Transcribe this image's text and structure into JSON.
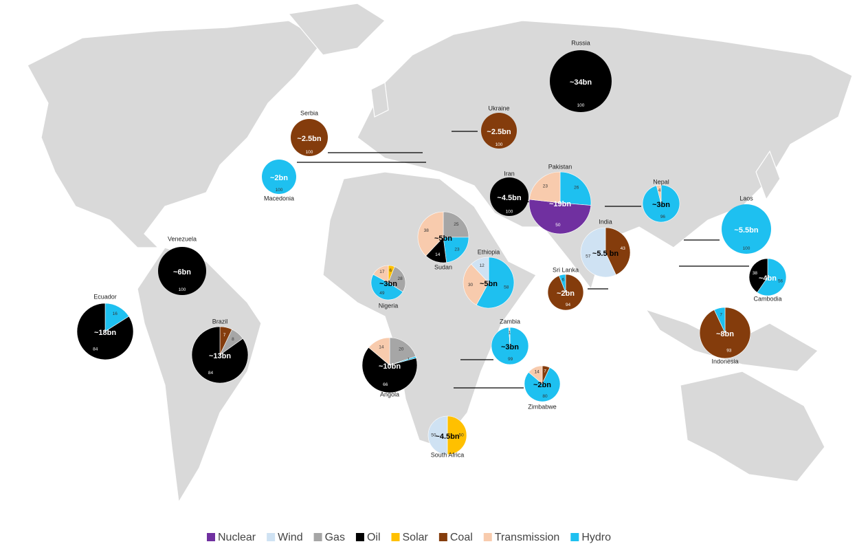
{
  "legend": [
    {
      "name": "Nuclear",
      "color": "#7030a0"
    },
    {
      "name": "Wind",
      "color": "#cfe2f3"
    },
    {
      "name": "Gas",
      "color": "#a6a6a6"
    },
    {
      "name": "Oil",
      "color": "#000000"
    },
    {
      "name": "Solar",
      "color": "#ffc000"
    },
    {
      "name": "Coal",
      "color": "#843c0c"
    },
    {
      "name": "Transmission",
      "color": "#f8cbad"
    },
    {
      "name": "Hydro",
      "color": "#1ec0f0"
    }
  ],
  "countries": [
    {
      "name": "Russia",
      "total": "~34bn",
      "slices": [
        {
          "source": "Oil",
          "value": 100
        }
      ]
    },
    {
      "name": "Ukraine",
      "total": "~2.5bn",
      "slices": [
        {
          "source": "Coal",
          "value": 100
        }
      ]
    },
    {
      "name": "Serbia",
      "total": "~2.5bn",
      "slices": [
        {
          "source": "Coal",
          "value": 100
        }
      ]
    },
    {
      "name": "Macedonia",
      "total": "~2bn",
      "slices": [
        {
          "source": "Hydro",
          "value": 100
        }
      ]
    },
    {
      "name": "Iran",
      "total": "~4.5bn",
      "slices": [
        {
          "source": "Oil",
          "value": 100
        }
      ]
    },
    {
      "name": "Pakistan",
      "total": "~19bn",
      "slices": [
        {
          "source": "Hydro",
          "value": 26
        },
        {
          "source": "Nuclear",
          "value": 50
        },
        {
          "source": "Transmission",
          "value": 23
        }
      ]
    },
    {
      "name": "Nepal",
      "total": "~3bn",
      "slices": [
        {
          "source": "Hydro",
          "value": 96
        },
        {
          "source": "Transmission",
          "value": 4
        }
      ]
    },
    {
      "name": "Laos",
      "total": "~5.5bn",
      "slices": [
        {
          "source": "Hydro",
          "value": 100
        }
      ]
    },
    {
      "name": "India",
      "total": "~5.5 bn",
      "slices": [
        {
          "source": "Coal",
          "value": 43
        },
        {
          "source": "Wind",
          "value": 57
        }
      ]
    },
    {
      "name": "Sri Lanka",
      "total": "~2bn",
      "slices": [
        {
          "source": "Coal",
          "value": 94
        },
        {
          "source": "Hydro",
          "value": 6
        }
      ]
    },
    {
      "name": "Cambodia",
      "total": "~4bn",
      "slices": [
        {
          "source": "Hydro",
          "value": 56
        },
        {
          "source": "Oil",
          "value": 38
        }
      ]
    },
    {
      "name": "Indonesia",
      "total": "~8bn",
      "slices": [
        {
          "source": "Coal",
          "value": 93
        },
        {
          "source": "Hydro",
          "value": 7
        }
      ]
    },
    {
      "name": "Venezuela",
      "total": "~6bn",
      "slices": [
        {
          "source": "Oil",
          "value": 100
        }
      ]
    },
    {
      "name": "Ecuador",
      "total": "~18bn",
      "slices": [
        {
          "source": "Hydro",
          "value": 16
        },
        {
          "source": "Oil",
          "value": 84
        }
      ]
    },
    {
      "name": "Brazil",
      "total": "~13bn",
      "slices": [
        {
          "source": "Coal",
          "value": 7
        },
        {
          "source": "Gas",
          "value": 8
        },
        {
          "source": "Oil",
          "value": 84
        }
      ]
    },
    {
      "name": "Sudan",
      "total": "~5bn",
      "slices": [
        {
          "source": "Gas",
          "value": 25
        },
        {
          "source": "Hydro",
          "value": 23
        },
        {
          "source": "Oil",
          "value": 14
        },
        {
          "source": "Transmission",
          "value": 38
        }
      ]
    },
    {
      "name": "Nigeria",
      "total": "~3bn",
      "slices": [
        {
          "source": "Solar",
          "value": 6
        },
        {
          "source": "Gas",
          "value": 28
        },
        {
          "source": "Hydro",
          "value": 49
        },
        {
          "source": "Transmission",
          "value": 17
        }
      ]
    },
    {
      "name": "Ethiopia",
      "total": "~5bn",
      "slices": [
        {
          "source": "Hydro",
          "value": 58
        },
        {
          "source": "Transmission",
          "value": 30
        },
        {
          "source": "Wind",
          "value": 12
        }
      ]
    },
    {
      "name": "Angola",
      "total": "~10bn",
      "slices": [
        {
          "source": "Gas",
          "value": 20
        },
        {
          "source": "Hydro",
          "value": 1
        },
        {
          "source": "Oil",
          "value": 66
        },
        {
          "source": "Transmission",
          "value": 14
        }
      ]
    },
    {
      "name": "Zambia",
      "total": "~3bn",
      "slices": [
        {
          "source": "Hydro",
          "value": 99
        },
        {
          "source": "Transmission",
          "value": 1
        }
      ]
    },
    {
      "name": "Zimbabwe",
      "total": "~2bn",
      "slices": [
        {
          "source": "Coal",
          "value": 7
        },
        {
          "source": "Hydro",
          "value": 80
        },
        {
          "source": "Transmission",
          "value": 14
        }
      ]
    },
    {
      "name": "South Africa",
      "total": "~4.5bn",
      "slices": [
        {
          "source": "Solar",
          "value": 50
        },
        {
          "source": "Wind",
          "value": 50
        }
      ]
    }
  ]
}
